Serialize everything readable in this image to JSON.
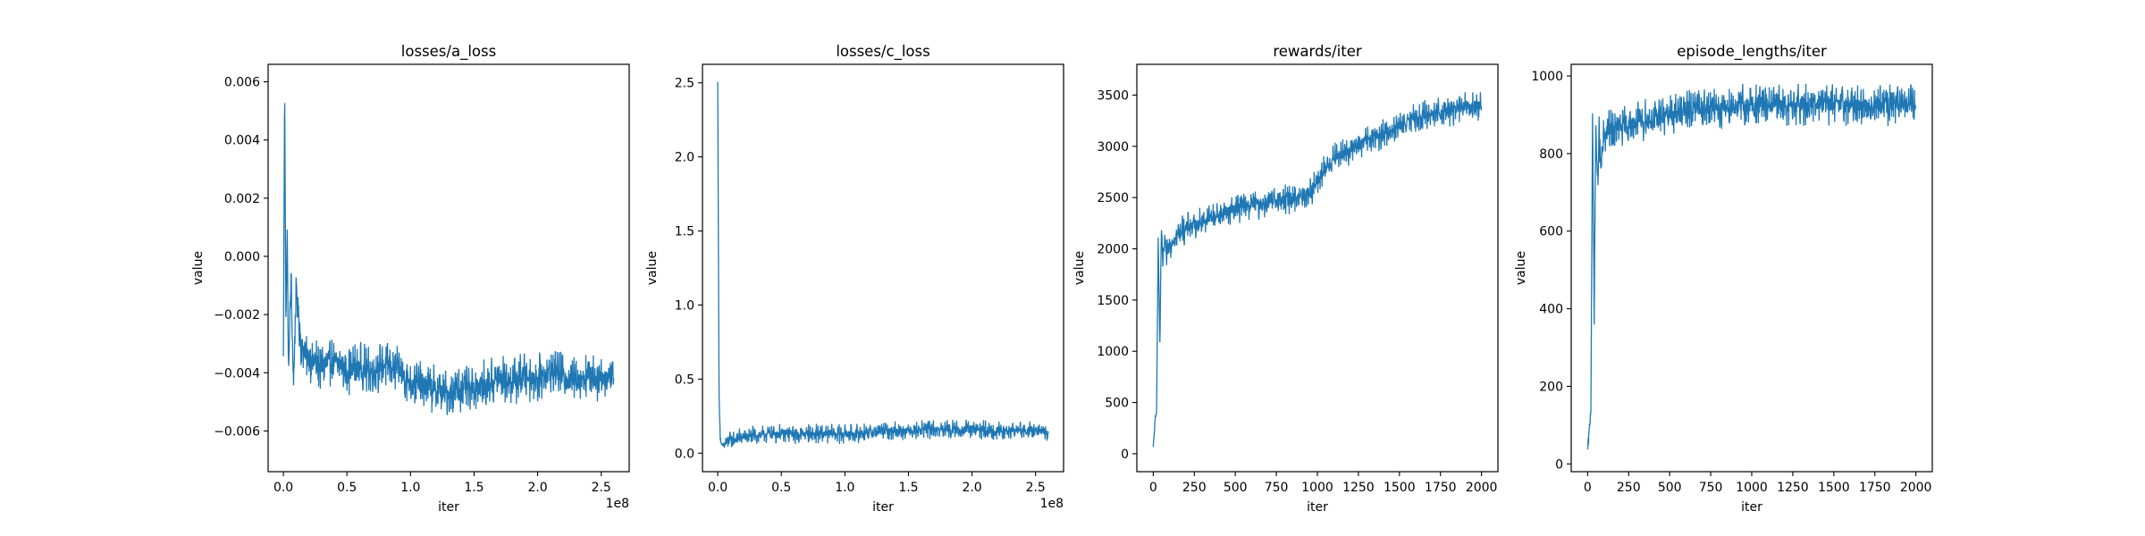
{
  "chart_data": [
    {
      "type": "line",
      "title": "losses/a_loss",
      "xlabel": "iter",
      "ylabel": "value",
      "xlim": [
        -12000000,
        272000000
      ],
      "ylim": [
        -0.0074,
        0.0066
      ],
      "x_scale_label": "1e8",
      "xticks": [
        0,
        50000000,
        100000000,
        150000000,
        200000000,
        250000000
      ],
      "xtick_labels": [
        "0.0",
        "0.5",
        "1.0",
        "1.5",
        "2.0",
        "2.5"
      ],
      "yticks": [
        -0.006,
        -0.004,
        -0.002,
        0.0,
        0.002,
        0.004,
        0.006
      ],
      "ytick_labels": [
        "−0.006",
        "−0.004",
        "−0.002",
        "0.000",
        "0.002",
        "0.004",
        "0.006"
      ],
      "series": [
        {
          "color": "#1f77b4",
          "x": [
            0,
            1000000,
            2000000,
            3000000,
            4000000,
            6000000,
            8000000,
            10000000,
            14000000,
            20000000,
            30000000,
            40000000,
            50000000,
            60000000,
            70000000,
            80000000,
            90000000,
            100000000,
            110000000,
            120000000,
            130000000,
            140000000,
            150000000,
            160000000,
            170000000,
            180000000,
            190000000,
            200000000,
            210000000,
            220000000,
            230000000,
            240000000,
            250000000,
            260000000
          ],
          "y": [
            -0.0035,
            0.006,
            -0.0025,
            0.001,
            -0.004,
            -0.0008,
            -0.0045,
            -0.001,
            -0.003,
            -0.0035,
            -0.0038,
            -0.0036,
            -0.0039,
            -0.0038,
            -0.004,
            -0.0037,
            -0.0039,
            -0.0043,
            -0.0045,
            -0.0046,
            -0.0047,
            -0.0046,
            -0.0045,
            -0.0044,
            -0.0042,
            -0.0043,
            -0.0041,
            -0.0042,
            -0.004,
            -0.0041,
            -0.0042,
            -0.0041,
            -0.0042,
            -0.0041
          ],
          "noise_amplitude": 0.0009
        }
      ]
    },
    {
      "type": "line",
      "title": "losses/c_loss",
      "xlabel": "iter",
      "ylabel": "value",
      "xlim": [
        -12000000,
        272000000
      ],
      "ylim": [
        -0.125,
        2.625
      ],
      "x_scale_label": "1e8",
      "xticks": [
        0,
        50000000,
        100000000,
        150000000,
        200000000,
        250000000
      ],
      "xtick_labels": [
        "0.0",
        "0.5",
        "1.0",
        "1.5",
        "2.0",
        "2.5"
      ],
      "yticks": [
        0.0,
        0.5,
        1.0,
        1.5,
        2.0,
        2.5
      ],
      "ytick_labels": [
        "0.0",
        "0.5",
        "1.0",
        "1.5",
        "2.0",
        "2.5"
      ],
      "series": [
        {
          "color": "#1f77b4",
          "x": [
            0,
            1000000,
            2000000,
            3000000,
            5000000,
            10000000,
            20000000,
            40000000,
            60000000,
            80000000,
            100000000,
            120000000,
            140000000,
            160000000,
            180000000,
            200000000,
            220000000,
            240000000,
            260000000
          ],
          "y": [
            2.5,
            0.4,
            0.1,
            0.05,
            0.06,
            0.09,
            0.11,
            0.13,
            0.13,
            0.13,
            0.13,
            0.14,
            0.15,
            0.16,
            0.16,
            0.16,
            0.15,
            0.15,
            0.14
          ],
          "noise_amplitude": 0.07
        }
      ]
    },
    {
      "type": "line",
      "title": "rewards/iter",
      "xlabel": "iter",
      "ylabel": "value",
      "xlim": [
        -100,
        2100
      ],
      "ylim": [
        -175,
        3800
      ],
      "xticks": [
        0,
        250,
        500,
        750,
        1000,
        1250,
        1500,
        1750,
        2000
      ],
      "xtick_labels": [
        "0",
        "250",
        "500",
        "750",
        "1000",
        "1250",
        "1500",
        "1750",
        "2000"
      ],
      "yticks": [
        0,
        500,
        1000,
        1500,
        2000,
        2500,
        3000,
        3500
      ],
      "ytick_labels": [
        "0",
        "500",
        "1000",
        "1500",
        "2000",
        "2500",
        "3000",
        "3500"
      ],
      "series": [
        {
          "color": "#1f77b4",
          "x": [
            0,
            10,
            20,
            30,
            40,
            50,
            60,
            70,
            80,
            100,
            150,
            200,
            300,
            400,
            500,
            600,
            700,
            800,
            900,
            950,
            1000,
            1050,
            1100,
            1200,
            1300,
            1400,
            1500,
            1600,
            1700,
            1800,
            1900,
            2000
          ],
          "y": [
            50,
            300,
            400,
            2100,
            1050,
            2200,
            1800,
            2100,
            1900,
            2050,
            2150,
            2200,
            2270,
            2330,
            2400,
            2430,
            2450,
            2480,
            2510,
            2540,
            2650,
            2780,
            2880,
            2960,
            3050,
            3120,
            3200,
            3270,
            3320,
            3350,
            3380,
            3400
          ],
          "noise_amplitude": 160
        }
      ]
    },
    {
      "type": "line",
      "title": "episode_lengths/iter",
      "xlabel": "iter",
      "ylabel": "value",
      "xlim": [
        -100,
        2100
      ],
      "ylim": [
        -20,
        1030
      ],
      "xticks": [
        0,
        250,
        500,
        750,
        1000,
        1250,
        1500,
        1750,
        2000
      ],
      "xtick_labels": [
        "0",
        "250",
        "500",
        "750",
        "1000",
        "1250",
        "1500",
        "1750",
        "2000"
      ],
      "yticks": [
        0,
        200,
        400,
        600,
        800,
        1000
      ],
      "ytick_labels": [
        "0",
        "200",
        "400",
        "600",
        "800",
        "1000"
      ],
      "series": [
        {
          "color": "#1f77b4",
          "x": [
            0,
            10,
            20,
            30,
            40,
            50,
            60,
            70,
            80,
            100,
            150,
            200,
            300,
            400,
            500,
            600,
            700,
            800,
            1000,
            1200,
            1400,
            1600,
            1800,
            2000
          ],
          "y": [
            30,
            90,
            140,
            900,
            400,
            880,
            700,
            860,
            760,
            850,
            860,
            870,
            880,
            890,
            900,
            910,
            915,
            920,
            925,
            925,
            925,
            925,
            925,
            925
          ],
          "noise_amplitude": 60
        }
      ]
    }
  ]
}
